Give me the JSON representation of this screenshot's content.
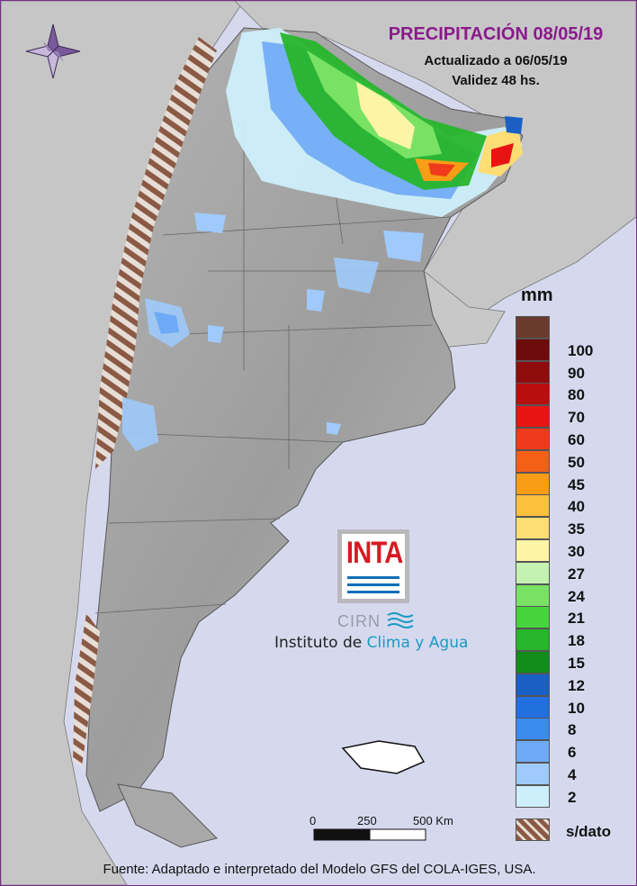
{
  "title": "PRECIPITACIÓN 08/05/19",
  "subtitle": {
    "updated": "Actualizado a 06/05/19",
    "validity": "Validez 48 hs."
  },
  "legend": {
    "unit": "mm",
    "entries": [
      {
        "label": "",
        "color": "#6b3a2e"
      },
      {
        "label": "100",
        "color": "#6e0b0b"
      },
      {
        "label": "90",
        "color": "#8e0c0c"
      },
      {
        "label": "80",
        "color": "#b80e0e"
      },
      {
        "label": "70",
        "color": "#e81414"
      },
      {
        "label": "60",
        "color": "#f03a1c"
      },
      {
        "label": "50",
        "color": "#f56018"
      },
      {
        "label": "45",
        "color": "#f99d16"
      },
      {
        "label": "40",
        "color": "#fbc03c"
      },
      {
        "label": "35",
        "color": "#fddd74"
      },
      {
        "label": "30",
        "color": "#fef4a6"
      },
      {
        "label": "27",
        "color": "#c4f2b0"
      },
      {
        "label": "24",
        "color": "#79e265"
      },
      {
        "label": "21",
        "color": "#46d43c"
      },
      {
        "label": "18",
        "color": "#27b52b"
      },
      {
        "label": "15",
        "color": "#128c1a"
      },
      {
        "label": "12",
        "color": "#1a5fc4"
      },
      {
        "label": "10",
        "color": "#226fe0"
      },
      {
        "label": "8",
        "color": "#3b8cf0"
      },
      {
        "label": "6",
        "color": "#6eaaf6"
      },
      {
        "label": "4",
        "color": "#9fcafb"
      },
      {
        "label": "2",
        "color": "#cdeffb"
      }
    ],
    "nodata_label": "s/dato"
  },
  "scale": {
    "labels": [
      "0",
      "250",
      "500 Km"
    ]
  },
  "logo": {
    "inta": "INTA",
    "cirn": "CIRN",
    "institute_prefix": "Instituto de",
    "institute_accent": "Clima y Agua"
  },
  "footer": "Fuente: Adaptado e interpretado del Modelo GFS del COLA-IGES, USA.",
  "colors": {
    "ocean": "#d6d9ee",
    "neighbor_land": "#c6c6c6",
    "argentina_relief": "#a7a7a7",
    "no_data_hatch": "#8b5a44",
    "title": "#8b1a8b",
    "frame": "#7a2d8c"
  },
  "icons": [
    "compass-rose-icon",
    "water-wave-icon"
  ]
}
